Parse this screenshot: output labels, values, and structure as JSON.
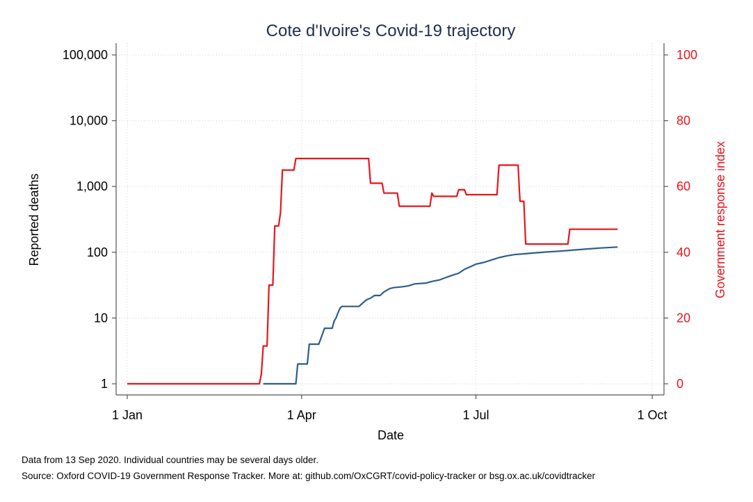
{
  "chart_data": {
    "type": "line",
    "title": "Cote d'Ivoire's Covid-19 trajectory",
    "xlabel": "Date",
    "x_ticks": [
      {
        "date": "2020-01-01",
        "label": "1 Jan"
      },
      {
        "date": "2020-04-01",
        "label": "1 Apr"
      },
      {
        "date": "2020-07-01",
        "label": "1 Jul"
      },
      {
        "date": "2020-10-01",
        "label": "1 Oct"
      }
    ],
    "xlim": [
      "2020-01-01",
      "2020-10-01"
    ],
    "y_left": {
      "label": "Reported deaths",
      "scale": "log",
      "ylim": [
        1,
        100000
      ],
      "ticks": [
        1,
        10,
        100,
        1000,
        10000,
        100000
      ],
      "tick_labels": [
        "1",
        "10",
        "100",
        "1,000",
        "10,000",
        "100,000"
      ]
    },
    "y_right": {
      "label": "Government response index",
      "scale": "linear",
      "ylim": [
        0,
        100
      ],
      "ticks": [
        0,
        20,
        40,
        60,
        80,
        100
      ],
      "tick_labels": [
        "0",
        "20",
        "40",
        "60",
        "80",
        "100"
      ]
    },
    "grid": true,
    "series": [
      {
        "axis": "left",
        "color": "#2b5d8c",
        "points": [
          [
            "2020-03-12",
            1
          ],
          [
            "2020-03-29",
            1
          ],
          [
            "2020-03-30",
            2
          ],
          [
            "2020-04-04",
            2
          ],
          [
            "2020-04-05",
            4
          ],
          [
            "2020-04-10",
            4
          ],
          [
            "2020-04-13",
            7
          ],
          [
            "2020-04-17",
            7
          ],
          [
            "2020-04-18",
            9
          ],
          [
            "2020-04-19",
            10
          ],
          [
            "2020-04-20",
            12
          ],
          [
            "2020-04-21",
            14
          ],
          [
            "2020-04-22",
            15
          ],
          [
            "2020-05-01",
            15
          ],
          [
            "2020-05-03",
            17
          ],
          [
            "2020-05-05",
            19
          ],
          [
            "2020-05-07",
            20
          ],
          [
            "2020-05-09",
            22
          ],
          [
            "2020-05-12",
            22
          ],
          [
            "2020-05-14",
            25
          ],
          [
            "2020-05-17",
            28
          ],
          [
            "2020-05-19",
            29
          ],
          [
            "2020-05-24",
            30
          ],
          [
            "2020-05-27",
            31
          ],
          [
            "2020-05-30",
            33
          ],
          [
            "2020-06-05",
            34
          ],
          [
            "2020-06-08",
            36
          ],
          [
            "2020-06-12",
            38
          ],
          [
            "2020-06-16",
            42
          ],
          [
            "2020-06-19",
            45
          ],
          [
            "2020-06-22",
            48
          ],
          [
            "2020-06-25",
            55
          ],
          [
            "2020-06-28",
            60
          ],
          [
            "2020-07-01",
            66
          ],
          [
            "2020-07-05",
            70
          ],
          [
            "2020-07-09",
            76
          ],
          [
            "2020-07-13",
            83
          ],
          [
            "2020-07-17",
            88
          ],
          [
            "2020-07-21",
            92
          ],
          [
            "2020-07-27",
            95
          ],
          [
            "2020-08-01",
            98
          ],
          [
            "2020-08-07",
            101
          ],
          [
            "2020-08-14",
            104
          ],
          [
            "2020-08-21",
            108
          ],
          [
            "2020-08-28",
            112
          ],
          [
            "2020-09-04",
            116
          ],
          [
            "2020-09-13",
            120
          ]
        ]
      },
      {
        "axis": "right",
        "color": "#e8141b",
        "points": [
          [
            "2020-01-01",
            0
          ],
          [
            "2020-03-10",
            0
          ],
          [
            "2020-03-11",
            3
          ],
          [
            "2020-03-12",
            11.5
          ],
          [
            "2020-03-14",
            11.5
          ],
          [
            "2020-03-15",
            30
          ],
          [
            "2020-03-17",
            30
          ],
          [
            "2020-03-18",
            48
          ],
          [
            "2020-03-20",
            48
          ],
          [
            "2020-03-21",
            52
          ],
          [
            "2020-03-22",
            65
          ],
          [
            "2020-03-28",
            65
          ],
          [
            "2020-03-29",
            68.5
          ],
          [
            "2020-05-06",
            68.5
          ],
          [
            "2020-05-07",
            61
          ],
          [
            "2020-05-13",
            61
          ],
          [
            "2020-05-14",
            58
          ],
          [
            "2020-05-21",
            58
          ],
          [
            "2020-05-22",
            54
          ],
          [
            "2020-06-07",
            54
          ],
          [
            "2020-06-08",
            58
          ],
          [
            "2020-06-09",
            57
          ],
          [
            "2020-06-21",
            57
          ],
          [
            "2020-06-22",
            59
          ],
          [
            "2020-06-25",
            59
          ],
          [
            "2020-06-26",
            57.5
          ],
          [
            "2020-07-12",
            57.5
          ],
          [
            "2020-07-13",
            66.5
          ],
          [
            "2020-07-23",
            66.5
          ],
          [
            "2020-07-24",
            55.5
          ],
          [
            "2020-07-26",
            55.5
          ],
          [
            "2020-07-27",
            42.5
          ],
          [
            "2020-08-18",
            42.5
          ],
          [
            "2020-08-19",
            47
          ],
          [
            "2020-09-13",
            47
          ]
        ]
      }
    ]
  },
  "footnotes": {
    "line1": "Data from 13 Sep 2020. Individual countries may be several days older.",
    "line2": "Source: Oxford COVID-19 Government Response Tracker. More at: github.com/OxCGRT/covid-policy-tracker or bsg.ox.ac.uk/covidtracker"
  }
}
